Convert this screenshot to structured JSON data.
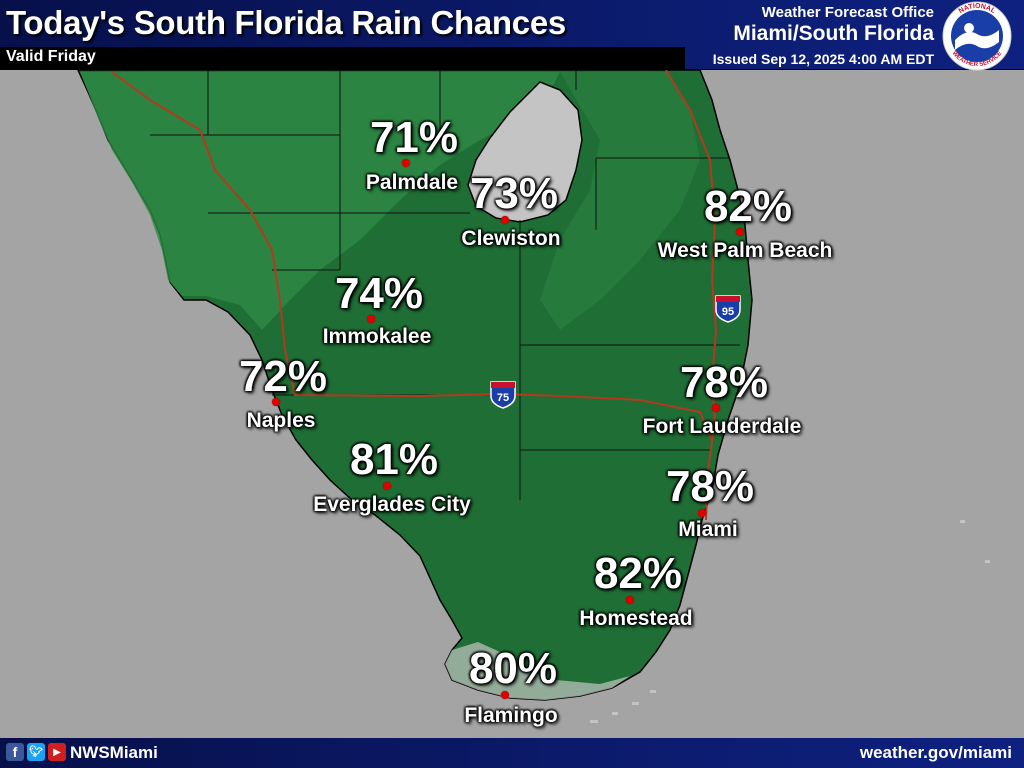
{
  "header": {
    "title": "Today's South Florida Rain Chances",
    "valid": "Valid Friday",
    "office_label": "Weather Forecast Office",
    "office_name": "Miami/South Florida",
    "issued": "Issued Sep 12, 2025 4:00 AM EDT"
  },
  "logo": {
    "text_top": "NATIONAL",
    "text_bottom": "WEATHER SERVICE"
  },
  "colors": {
    "land": "#1f6e35",
    "land_light": "#2e8a45",
    "water": "#a4a4a4",
    "lake": "#c4c4c4",
    "highway": "#b33a1f",
    "city_dot": "#e00000",
    "banner": "#0b1a6a"
  },
  "highways": [
    {
      "shield": "95",
      "label": "INTERSTATE"
    },
    {
      "shield": "75",
      "label": "INTERSTATE"
    }
  ],
  "cities": [
    {
      "name": "Palmdale",
      "pct": "71%"
    },
    {
      "name": "Clewiston",
      "pct": "73%"
    },
    {
      "name": "West Palm Beach",
      "pct": "82%"
    },
    {
      "name": "Immokalee",
      "pct": "74%"
    },
    {
      "name": "Naples",
      "pct": "72%"
    },
    {
      "name": "Fort Lauderdale",
      "pct": "78%"
    },
    {
      "name": "Everglades City",
      "pct": "81%"
    },
    {
      "name": "Miami",
      "pct": "78%"
    },
    {
      "name": "Homestead",
      "pct": "82%"
    },
    {
      "name": "Flamingo",
      "pct": "80%"
    }
  ],
  "footer": {
    "handle": "NWSMiami",
    "site": "weather.gov/miami",
    "icons": [
      "facebook-icon",
      "twitter-icon",
      "youtube-icon"
    ]
  }
}
